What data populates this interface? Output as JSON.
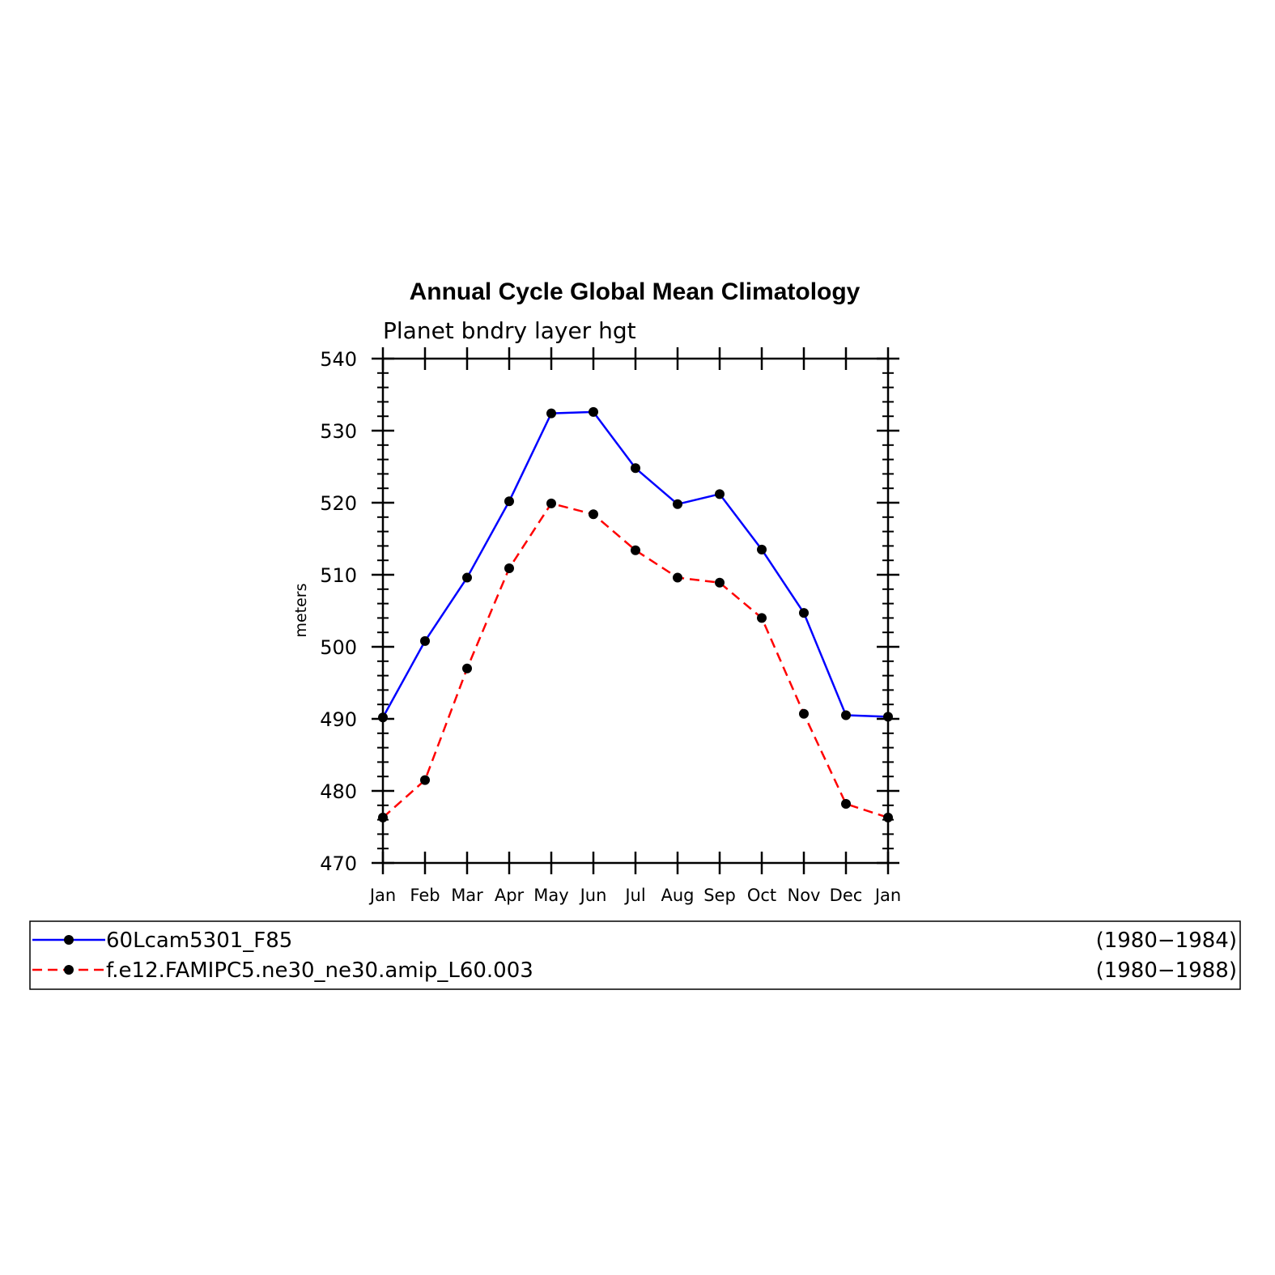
{
  "chart_data": {
    "type": "line",
    "title": "Annual Cycle Global Mean Climatology",
    "subtitle": "Planet bndry layer hgt",
    "xlabel": "",
    "ylabel": "meters",
    "categories": [
      "Jan",
      "Feb",
      "Mar",
      "Apr",
      "May",
      "Jun",
      "Jul",
      "Aug",
      "Sep",
      "Oct",
      "Nov",
      "Dec",
      "Jan"
    ],
    "ylim": [
      470,
      540
    ],
    "yticks": [
      470,
      480,
      490,
      500,
      510,
      520,
      530,
      540
    ],
    "y_minor_step": 2,
    "grid": false,
    "legend_position": "bottom",
    "series": [
      {
        "name": "60Lcam5301_F85",
        "period": "(1980−1984)",
        "color": "#0000ff",
        "dash": "solid",
        "values": [
          490.2,
          500.8,
          509.6,
          520.2,
          532.4,
          532.6,
          524.8,
          519.8,
          521.2,
          513.5,
          504.7,
          490.5,
          490.3
        ]
      },
      {
        "name": "f.e12.FAMIPC5.ne30_ne30.amip_L60.003",
        "period": "(1980−1988)",
        "color": "#ff0000",
        "dash": "dashed",
        "values": [
          476.3,
          481.5,
          497.0,
          510.9,
          519.9,
          518.4,
          513.4,
          509.6,
          508.9,
          504.0,
          490.7,
          478.2,
          476.3
        ]
      }
    ]
  }
}
